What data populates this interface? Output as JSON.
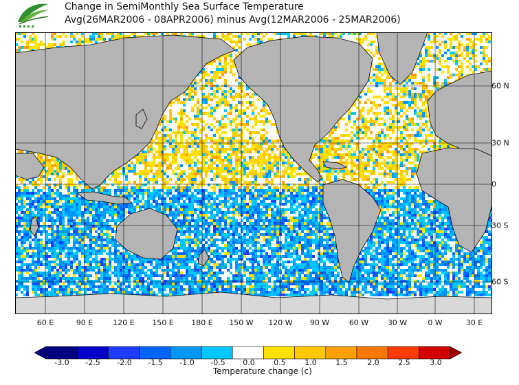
{
  "header": {
    "title_line1": "Change in SemiMonthly Sea Surface Temperature",
    "title_line2": "Avg(26MAR2006 - 08APR2006) minus Avg(12MAR2006 - 25MAR2006)"
  },
  "map": {
    "x_labels": [
      "60 E",
      "90 E",
      "120 E",
      "150 E",
      "180 E",
      "150 W",
      "120 W",
      "90 W",
      "60 W",
      "30 W",
      "0 W",
      "30 E"
    ],
    "y_labels": [
      "60 N",
      "30 N",
      "0",
      "30 S",
      "60 S"
    ],
    "colors": {
      "land": "#b4b4b4",
      "ice": "#d8d8d8",
      "ocean_neutral": "#ffffff",
      "grid": "#000000"
    }
  },
  "colorbar": {
    "labels": [
      "-3.0",
      "-2.5",
      "-2.0",
      "-1.5",
      "-1.0",
      "-0.5",
      "0.0",
      "0.5",
      "1.0",
      "1.5",
      "2.0",
      "2.5",
      "3.0"
    ],
    "colors": [
      "#000080",
      "#0000c8",
      "#1e3cff",
      "#0064ff",
      "#0096ff",
      "#00c8ff",
      "#ffffff",
      "#ffe100",
      "#ffc800",
      "#ffa000",
      "#ff7800",
      "#ff3c00",
      "#d20000",
      "#a00000"
    ],
    "title": "Temperature change (c)"
  }
}
